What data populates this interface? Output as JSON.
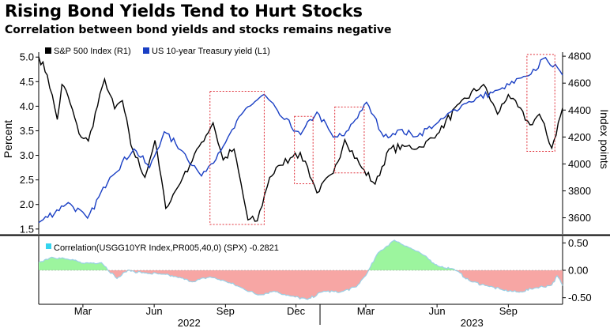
{
  "header": {
    "title": "Rising Bond Yields Tend to Hurt Stocks",
    "subtitle": "Correlation between bond yields and stocks remains negative"
  },
  "colors": {
    "spx": "#000000",
    "yield": "#1a3fc4",
    "positive_fill": "#9cf59e",
    "negative_fill": "#f7a6a4",
    "highlight_box": "#e0303a",
    "corr_line": "#9ad0e6"
  },
  "chart_data": [
    {
      "type": "line",
      "title": "",
      "legend_position": "top-left",
      "x_axis": {
        "start": "2022-01-03",
        "end": "2023-11-10",
        "tick_labels": [
          "Mar",
          "Jun",
          "Sep",
          "Dec",
          "Mar",
          "Jun",
          "Sep"
        ],
        "tick_dates": [
          "2022-03-01",
          "2022-06-01",
          "2022-09-01",
          "2022-12-01",
          "2023-03-01",
          "2023-06-01",
          "2023-09-01"
        ],
        "year_labels": [
          "2022",
          "2023"
        ],
        "year_label_dates": [
          "2022-07-16",
          "2023-07-16"
        ]
      },
      "y_left": {
        "label": "Percent",
        "range": [
          1.4,
          5.1
        ],
        "ticks": [
          "1.5",
          "2.0",
          "2.5",
          "3.0",
          "3.5",
          "4.0",
          "4.5",
          "5.0"
        ],
        "tick_values": [
          1.5,
          2.0,
          2.5,
          3.0,
          3.5,
          4.0,
          4.5,
          5.0
        ]
      },
      "y_right": {
        "label": "Index points",
        "range": [
          3480,
          4830
        ],
        "ticks": [
          "3600",
          "3800",
          "4000",
          "4200",
          "4400",
          "4600",
          "4800"
        ],
        "tick_values": [
          3600,
          3800,
          4000,
          4200,
          4400,
          4600,
          4800
        ]
      },
      "series": [
        {
          "name": "S&P 500 Index (R1)",
          "axis": "right",
          "color_key": "spx",
          "points": [
            [
              "2022-01-03",
              4796
            ],
            [
              "2022-01-14",
              4660
            ],
            [
              "2022-01-27",
              4330
            ],
            [
              "2022-02-02",
              4590
            ],
            [
              "2022-02-10",
              4500
            ],
            [
              "2022-02-24",
              4225
            ],
            [
              "2022-03-08",
              4170
            ],
            [
              "2022-03-29",
              4630
            ],
            [
              "2022-04-11",
              4410
            ],
            [
              "2022-04-21",
              4470
            ],
            [
              "2022-05-02",
              4140
            ],
            [
              "2022-05-20",
              3900
            ],
            [
              "2022-06-02",
              4175
            ],
            [
              "2022-06-16",
              3670
            ],
            [
              "2022-07-08",
              3900
            ],
            [
              "2022-07-29",
              4130
            ],
            [
              "2022-08-16",
              4305
            ],
            [
              "2022-08-29",
              4030
            ],
            [
              "2022-09-12",
              4110
            ],
            [
              "2022-09-30",
              3585
            ],
            [
              "2022-10-12",
              3577
            ],
            [
              "2022-10-28",
              3900
            ],
            [
              "2022-11-11",
              3990
            ],
            [
              "2022-11-30",
              4080
            ],
            [
              "2022-12-13",
              4020
            ],
            [
              "2022-12-28",
              3785
            ],
            [
              "2023-01-18",
              3930
            ],
            [
              "2023-02-02",
              4180
            ],
            [
              "2023-02-24",
              3970
            ],
            [
              "2023-03-13",
              3850
            ],
            [
              "2023-03-31",
              4110
            ],
            [
              "2023-04-20",
              4130
            ],
            [
              "2023-05-12",
              4125
            ],
            [
              "2023-06-01",
              4220
            ],
            [
              "2023-06-30",
              4450
            ],
            [
              "2023-07-31",
              4590
            ],
            [
              "2023-08-18",
              4370
            ],
            [
              "2023-09-01",
              4515
            ],
            [
              "2023-09-29",
              4290
            ],
            [
              "2023-10-11",
              4370
            ],
            [
              "2023-10-27",
              4117
            ],
            [
              "2023-11-10",
              4415
            ]
          ]
        },
        {
          "name": "US 10-year Treasury yield (L1)",
          "axis": "left",
          "color_key": "yield",
          "points": [
            [
              "2022-01-03",
              1.63
            ],
            [
              "2022-02-10",
              2.04
            ],
            [
              "2022-03-07",
              1.72
            ],
            [
              "2022-04-05",
              2.55
            ],
            [
              "2022-05-06",
              3.13
            ],
            [
              "2022-05-26",
              2.75
            ],
            [
              "2022-06-14",
              3.48
            ],
            [
              "2022-07-08",
              3.08
            ],
            [
              "2022-08-01",
              2.58
            ],
            [
              "2022-09-01",
              3.26
            ],
            [
              "2022-09-27",
              3.95
            ],
            [
              "2022-10-21",
              4.24
            ],
            [
              "2022-11-10",
              3.82
            ],
            [
              "2022-12-07",
              3.42
            ],
            [
              "2022-12-28",
              3.88
            ],
            [
              "2023-01-18",
              3.37
            ],
            [
              "2023-02-01",
              3.4
            ],
            [
              "2023-03-02",
              4.08
            ],
            [
              "2023-03-24",
              3.38
            ],
            [
              "2023-04-14",
              3.52
            ],
            [
              "2023-05-04",
              3.38
            ],
            [
              "2023-05-31",
              3.64
            ],
            [
              "2023-07-06",
              4.05
            ],
            [
              "2023-08-21",
              4.34
            ],
            [
              "2023-09-27",
              4.62
            ],
            [
              "2023-10-19",
              4.99
            ],
            [
              "2023-11-10",
              4.63
            ]
          ]
        }
      ],
      "highlight_periods": [
        [
          "2022-08-12",
          "2022-10-21"
        ],
        [
          "2022-11-29",
          "2022-12-23"
        ],
        [
          "2023-01-20",
          "2023-02-27"
        ],
        [
          "2023-09-25",
          "2023-10-31"
        ]
      ]
    },
    {
      "type": "area",
      "title": "",
      "legend": "Correlation(USGG10YR Index,PR005,40,0) (SPX) -0.2821",
      "last_value": -0.2821,
      "y": {
        "range": [
          -0.62,
          0.62
        ],
        "ticks": [
          "0.50",
          "0.00",
          "-0.50"
        ],
        "tick_values": [
          0.5,
          0.0,
          -0.5
        ]
      },
      "points": [
        [
          "2022-01-03",
          0.15
        ],
        [
          "2022-01-20",
          0.24
        ],
        [
          "2022-02-10",
          0.2
        ],
        [
          "2022-03-01",
          0.13
        ],
        [
          "2022-03-25",
          0.14
        ],
        [
          "2022-04-14",
          -0.15
        ],
        [
          "2022-04-28",
          0.0
        ],
        [
          "2022-05-20",
          -0.05
        ],
        [
          "2022-06-10",
          -0.07
        ],
        [
          "2022-06-30",
          -0.12
        ],
        [
          "2022-07-20",
          -0.21
        ],
        [
          "2022-08-12",
          -0.12
        ],
        [
          "2022-09-01",
          -0.2
        ],
        [
          "2022-09-22",
          -0.32
        ],
        [
          "2022-10-13",
          -0.45
        ],
        [
          "2022-11-03",
          -0.38
        ],
        [
          "2022-11-24",
          -0.47
        ],
        [
          "2022-12-16",
          -0.53
        ],
        [
          "2023-01-06",
          -0.38
        ],
        [
          "2023-01-27",
          -0.4
        ],
        [
          "2023-02-17",
          -0.3
        ],
        [
          "2023-03-03",
          -0.05
        ],
        [
          "2023-03-17",
          0.32
        ],
        [
          "2023-04-07",
          0.55
        ],
        [
          "2023-04-24",
          0.43
        ],
        [
          "2023-05-12",
          0.3
        ],
        [
          "2023-06-02",
          0.08
        ],
        [
          "2023-06-23",
          0.02
        ],
        [
          "2023-07-14",
          -0.2
        ],
        [
          "2023-08-04",
          -0.28
        ],
        [
          "2023-08-25",
          -0.36
        ],
        [
          "2023-09-15",
          -0.4
        ],
        [
          "2023-10-06",
          -0.32
        ],
        [
          "2023-10-27",
          -0.27
        ],
        [
          "2023-11-03",
          -0.1
        ],
        [
          "2023-11-10",
          -0.28
        ]
      ]
    }
  ]
}
